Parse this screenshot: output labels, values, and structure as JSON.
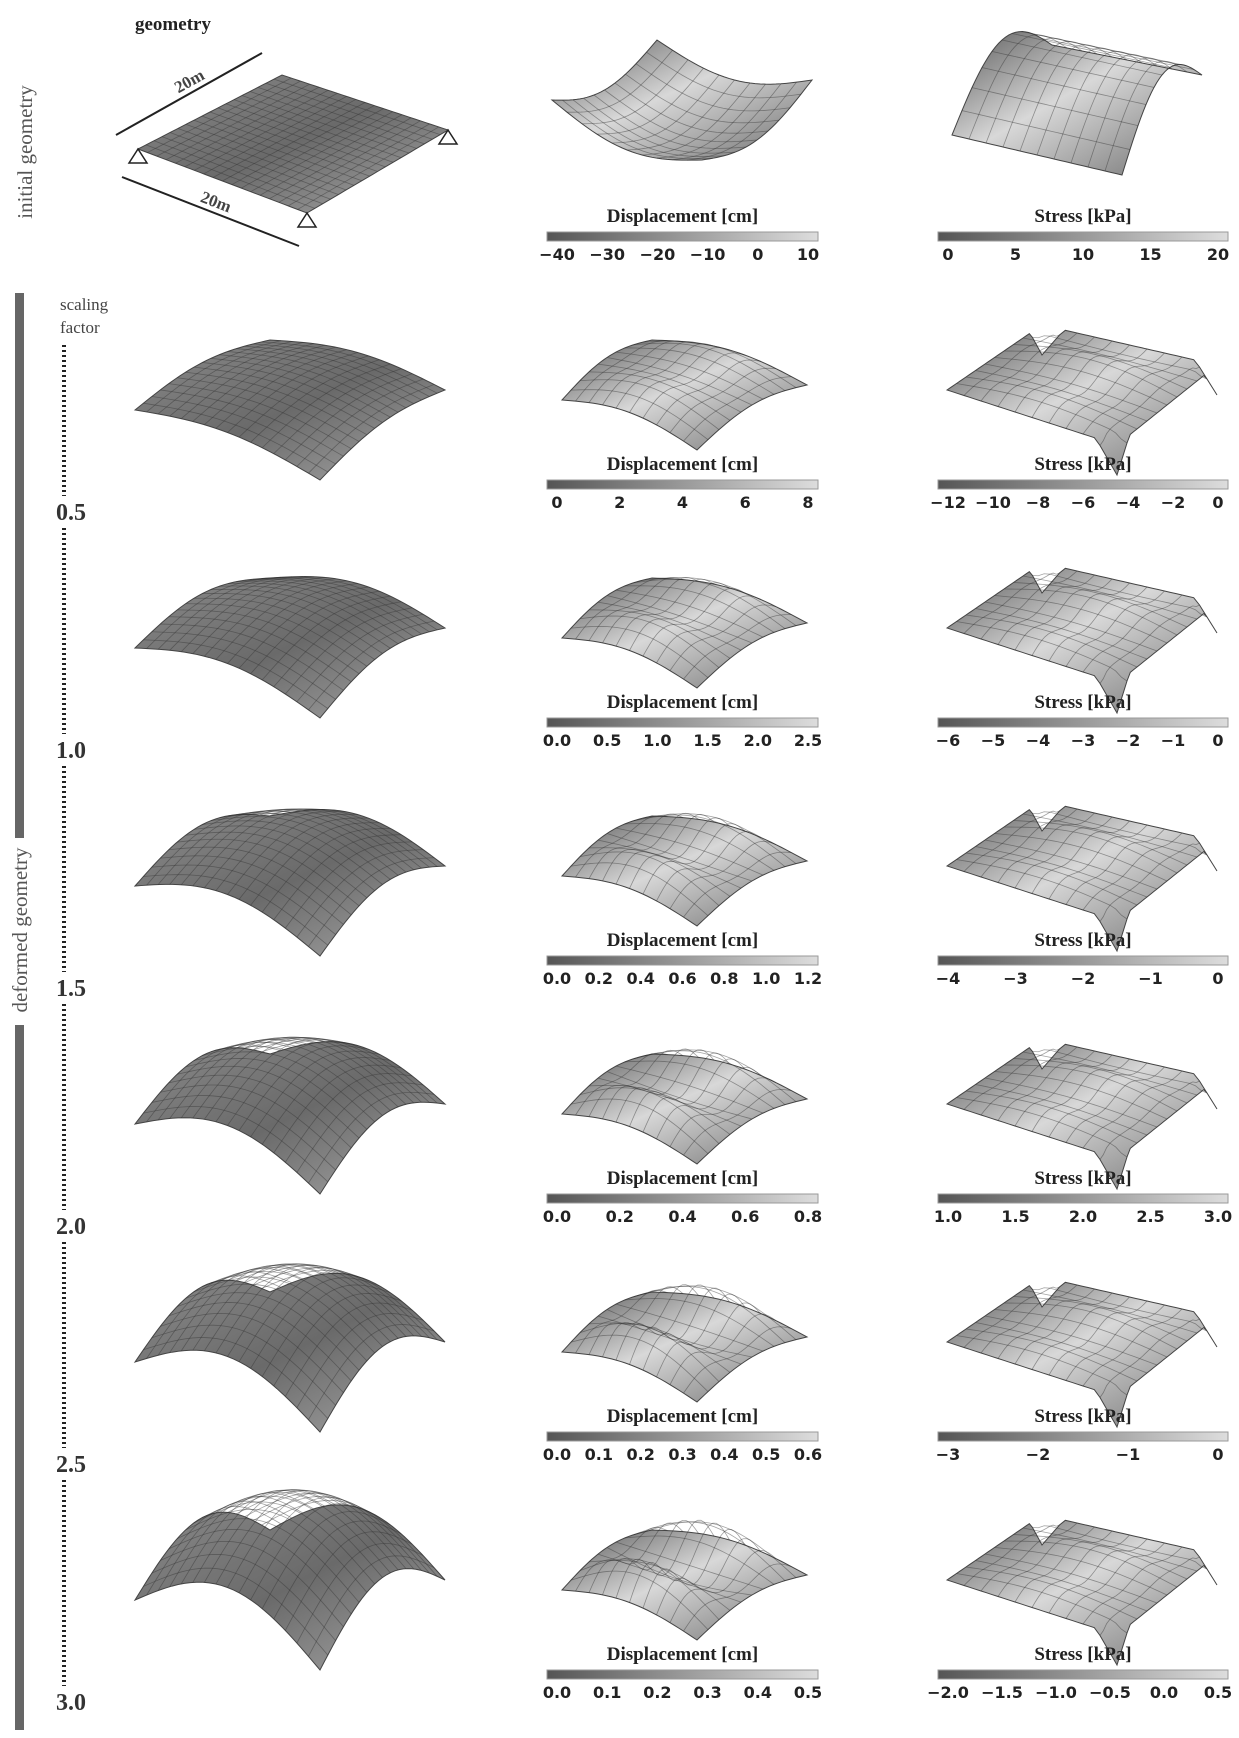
{
  "side_labels": {
    "initial": "initial geometry",
    "deformed": "deformed geometry"
  },
  "geometry": {
    "title": "geometry",
    "dimension_top": "20m",
    "dimension_bottom": "20m"
  },
  "scaling_label": [
    "scaling",
    "factor"
  ],
  "initial_row": {
    "displacement": {
      "title": "Displacement [cm]",
      "ticks": [
        "−40",
        "−30",
        "−20",
        "−10",
        "0",
        "10"
      ]
    },
    "stress": {
      "title": "Stress [kPa]",
      "ticks": [
        "0",
        "5",
        "10",
        "15",
        "20"
      ]
    }
  },
  "deformed_rows": [
    {
      "scaling_factor": "0.5",
      "displacement": {
        "title": "Displacement [cm]",
        "ticks": [
          "0",
          "2",
          "4",
          "6",
          "8"
        ]
      },
      "stress": {
        "title": "Stress [kPa]",
        "ticks": [
          "−12",
          "−10",
          "−8",
          "−6",
          "−4",
          "−2",
          "0"
        ]
      }
    },
    {
      "scaling_factor": "1.0",
      "displacement": {
        "title": "Displacement [cm]",
        "ticks": [
          "0.0",
          "0.5",
          "1.0",
          "1.5",
          "2.0",
          "2.5"
        ]
      },
      "stress": {
        "title": "Stress [kPa]",
        "ticks": [
          "−6",
          "−5",
          "−4",
          "−3",
          "−2",
          "−1",
          "0"
        ]
      }
    },
    {
      "scaling_factor": "1.5",
      "displacement": {
        "title": "Displacement [cm]",
        "ticks": [
          "0.0",
          "0.2",
          "0.4",
          "0.6",
          "0.8",
          "1.0",
          "1.2"
        ]
      },
      "stress": {
        "title": "Stress [kPa]",
        "ticks": [
          "−4",
          "−3",
          "−2",
          "−1",
          "0"
        ]
      }
    },
    {
      "scaling_factor": "2.0",
      "displacement": {
        "title": "Displacement [cm]",
        "ticks": [
          "0.0",
          "0.2",
          "0.4",
          "0.6",
          "0.8"
        ]
      },
      "stress": {
        "title": "Stress [kPa]",
        "ticks": [
          "1.0",
          "1.5",
          "2.0",
          "2.5",
          "3.0"
        ]
      }
    },
    {
      "scaling_factor": "2.5",
      "displacement": {
        "title": "Displacement [cm]",
        "ticks": [
          "0.0",
          "0.1",
          "0.2",
          "0.3",
          "0.4",
          "0.5",
          "0.6"
        ]
      },
      "stress": {
        "title": "Stress [kPa]",
        "ticks": [
          "−3",
          "−2",
          "−1",
          "0"
        ]
      }
    },
    {
      "scaling_factor": "3.0",
      "displacement": {
        "title": "Displacement [cm]",
        "ticks": [
          "0.0",
          "0.1",
          "0.2",
          "0.3",
          "0.4",
          "0.5"
        ]
      },
      "stress": {
        "title": "Stress [kPa]",
        "ticks": [
          "−2.0",
          "−1.5",
          "−1.0",
          "−0.5",
          "0.0",
          "0.5"
        ]
      }
    }
  ]
}
